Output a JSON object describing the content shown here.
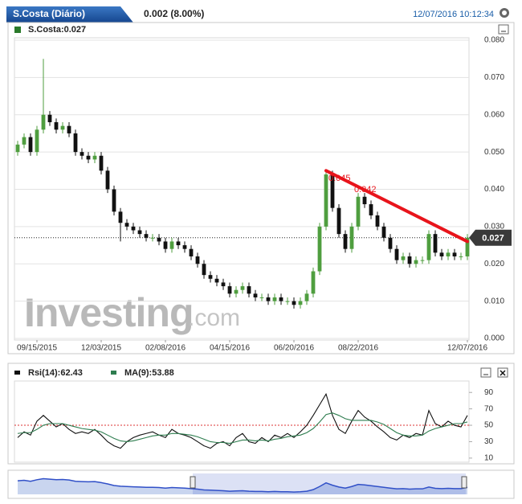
{
  "header": {
    "title": "S.Costa (Diário)",
    "change": "0.002 (8.00%)",
    "timestamp": "12/07/2016 10:12:34"
  },
  "chart_data": [
    {
      "type": "candlestick",
      "legend": "S.Costa:0.027",
      "categories": [
        null,
        null,
        null,
        "09/15/2015",
        null,
        null,
        null,
        null,
        null,
        null,
        null,
        null,
        null,
        "12/03/2015",
        null,
        null,
        null,
        null,
        null,
        null,
        null,
        null,
        null,
        "02/08/2016",
        null,
        null,
        null,
        null,
        null,
        null,
        null,
        null,
        null,
        "04/15/2016",
        null,
        null,
        null,
        null,
        null,
        null,
        null,
        null,
        null,
        "06/20/2016",
        null,
        null,
        null,
        null,
        null,
        null,
        null,
        null,
        null,
        "08/22/2016",
        null,
        null,
        null,
        null,
        null,
        null,
        null,
        null,
        null,
        null,
        null,
        null,
        null,
        null,
        null,
        null,
        "12/07/2016"
      ],
      "open": [
        0.05,
        0.052,
        0.054,
        0.05,
        0.056,
        0.06,
        0.058,
        0.056,
        0.057,
        0.055,
        0.05,
        0.049,
        0.048,
        0.049,
        0.045,
        0.04,
        0.034,
        0.031,
        0.03,
        0.029,
        0.028,
        0.027,
        0.027,
        0.026,
        0.024,
        0.026,
        0.025,
        0.024,
        0.022,
        0.02,
        0.017,
        0.016,
        0.015,
        0.014,
        0.012,
        0.013,
        0.014,
        0.012,
        0.011,
        0.011,
        0.01,
        0.011,
        0.01,
        0.01,
        0.009,
        0.01,
        0.012,
        0.018,
        0.03,
        0.044,
        0.035,
        0.028,
        0.024,
        0.03,
        0.038,
        0.036,
        0.033,
        0.03,
        0.027,
        0.024,
        0.021,
        0.022,
        0.02,
        0.021,
        0.021,
        0.028,
        0.023,
        0.022,
        0.023,
        0.022,
        0.022
      ],
      "high": [
        0.053,
        0.055,
        0.055,
        0.057,
        0.075,
        0.061,
        0.059,
        0.058,
        0.058,
        0.056,
        0.051,
        0.05,
        0.05,
        0.05,
        0.046,
        0.041,
        0.035,
        0.032,
        0.031,
        0.03,
        0.029,
        0.028,
        0.028,
        0.027,
        0.027,
        0.027,
        0.026,
        0.025,
        0.023,
        0.021,
        0.018,
        0.017,
        0.016,
        0.015,
        0.014,
        0.015,
        0.015,
        0.013,
        0.012,
        0.012,
        0.012,
        0.012,
        0.011,
        0.011,
        0.011,
        0.013,
        0.019,
        0.031,
        0.045,
        0.045,
        0.036,
        0.029,
        0.031,
        0.039,
        0.039,
        0.037,
        0.034,
        0.031,
        0.028,
        0.025,
        0.023,
        0.023,
        0.022,
        0.022,
        0.029,
        0.029,
        0.024,
        0.024,
        0.024,
        0.023,
        0.028
      ],
      "low": [
        0.049,
        0.051,
        0.049,
        0.049,
        0.055,
        0.057,
        0.055,
        0.055,
        0.054,
        0.049,
        0.048,
        0.047,
        0.047,
        0.044,
        0.039,
        0.033,
        0.026,
        0.029,
        0.028,
        0.027,
        0.026,
        0.026,
        0.025,
        0.023,
        0.023,
        0.024,
        0.023,
        0.021,
        0.019,
        0.016,
        0.015,
        0.014,
        0.013,
        0.011,
        0.011,
        0.012,
        0.011,
        0.01,
        0.01,
        0.009,
        0.009,
        0.009,
        0.009,
        0.008,
        0.008,
        0.009,
        0.011,
        0.017,
        0.029,
        0.034,
        0.027,
        0.023,
        0.023,
        0.029,
        0.035,
        0.032,
        0.029,
        0.026,
        0.023,
        0.02,
        0.02,
        0.019,
        0.019,
        0.02,
        0.02,
        0.022,
        0.021,
        0.021,
        0.021,
        0.021,
        0.021
      ],
      "close": [
        0.052,
        0.054,
        0.05,
        0.056,
        0.06,
        0.058,
        0.056,
        0.057,
        0.055,
        0.05,
        0.049,
        0.048,
        0.049,
        0.045,
        0.04,
        0.034,
        0.031,
        0.03,
        0.029,
        0.028,
        0.027,
        0.027,
        0.026,
        0.024,
        0.026,
        0.025,
        0.024,
        0.022,
        0.02,
        0.017,
        0.016,
        0.015,
        0.014,
        0.012,
        0.013,
        0.014,
        0.012,
        0.011,
        0.011,
        0.01,
        0.011,
        0.01,
        0.01,
        0.009,
        0.01,
        0.012,
        0.018,
        0.03,
        0.044,
        0.035,
        0.028,
        0.024,
        0.03,
        0.038,
        0.036,
        0.033,
        0.03,
        0.027,
        0.024,
        0.021,
        0.022,
        0.02,
        0.021,
        0.021,
        0.028,
        0.023,
        0.022,
        0.023,
        0.022,
        0.022,
        0.027
      ],
      "up_color": "#4f9e3f",
      "down_color": "#111111",
      "ylim": [
        0,
        0.08
      ],
      "yticks": [
        {
          "value": 0,
          "label": "0.000"
        },
        {
          "value": 0.01,
          "label": "0.010"
        },
        {
          "value": 0.02,
          "label": "0.020"
        },
        {
          "value": 0.03,
          "label": "0.030"
        },
        {
          "value": 0.04,
          "label": "0.040"
        },
        {
          "value": 0.05,
          "label": "0.050"
        },
        {
          "value": 0.06,
          "label": "0.060"
        },
        {
          "value": 0.07,
          "label": "0.070"
        },
        {
          "value": 0.08,
          "label": "0.080"
        }
      ],
      "grid": true,
      "last_price": 0.027,
      "trend_line": {
        "color": "#e8141b",
        "start_index": 48,
        "end_index": 70,
        "values": [
          0.045,
          0.026
        ]
      },
      "annotations": [
        {
          "text": "0.045",
          "index": 48,
          "value": 0.045
        },
        {
          "text": "0.042",
          "index": 52,
          "value": 0.042
        }
      ],
      "watermark": [
        "Investing",
        ".com"
      ]
    },
    {
      "type": "line",
      "series": [
        {
          "name": "Rsi(14):62.43",
          "color": "#111111",
          "values": [
            35,
            42,
            38,
            55,
            62,
            55,
            48,
            52,
            45,
            40,
            42,
            40,
            45,
            38,
            30,
            25,
            22,
            30,
            35,
            38,
            40,
            42,
            38,
            35,
            45,
            40,
            38,
            35,
            30,
            25,
            22,
            28,
            30,
            25,
            35,
            40,
            30,
            28,
            35,
            30,
            38,
            35,
            40,
            35,
            42,
            50,
            62,
            75,
            88,
            62,
            45,
            40,
            55,
            68,
            60,
            55,
            48,
            42,
            35,
            32,
            38,
            35,
            40,
            38,
            68,
            52,
            48,
            55,
            50,
            48,
            62
          ]
        },
        {
          "name": "MA(9):53.88",
          "color": "#2e7d4f",
          "values": [
            40,
            41,
            41,
            45,
            50,
            52,
            52,
            52,
            50,
            48,
            46,
            45,
            44,
            42,
            38,
            34,
            31,
            30,
            31,
            33,
            35,
            37,
            38,
            38,
            40,
            40,
            39,
            38,
            36,
            33,
            30,
            29,
            29,
            28,
            30,
            32,
            32,
            31,
            32,
            31,
            33,
            34,
            36,
            37,
            38,
            41,
            46,
            54,
            63,
            65,
            62,
            58,
            56,
            56,
            56,
            56,
            54,
            51,
            46,
            41,
            38,
            37,
            37,
            38,
            43,
            46,
            48,
            50,
            52,
            52,
            54
          ]
        }
      ],
      "ylim": [
        5,
        100
      ],
      "yticks": [
        10,
        30,
        50,
        70,
        90
      ],
      "reference_line": 50
    }
  ]
}
